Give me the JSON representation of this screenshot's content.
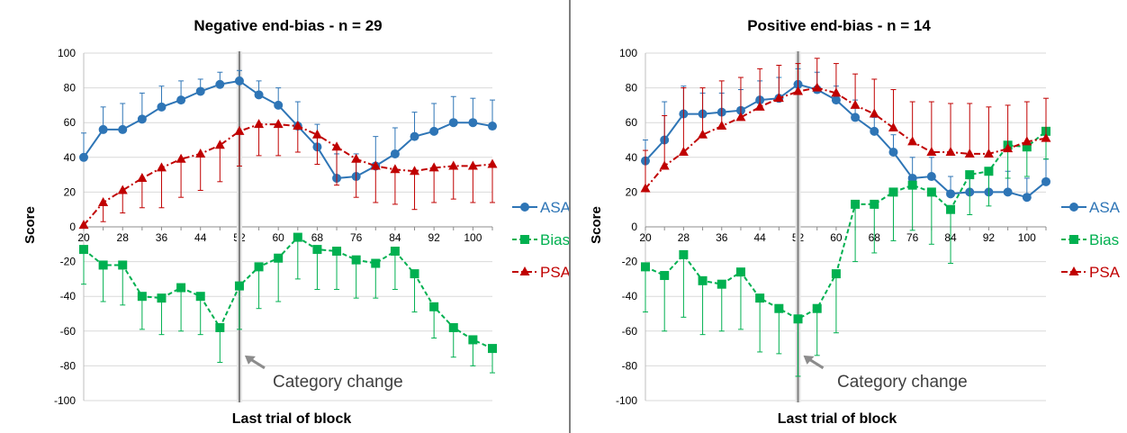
{
  "figure": {
    "charts": [
      {
        "title": "Negative end-bias - n = 29",
        "xlabel": "Last trial of block",
        "ylabel": "Score",
        "annotation": "Category change"
      },
      {
        "title": "Positive end-bias - n = 14",
        "xlabel": "Last trial of block",
        "ylabel": "Score",
        "annotation": "Category change"
      }
    ]
  },
  "chart_data": [
    {
      "type": "line",
      "title": "Negative end-bias - n = 29",
      "xlabel": "Last trial of block",
      "ylabel": "Score",
      "ylim": [
        -100,
        100
      ],
      "yticks": [
        100,
        80,
        60,
        40,
        20,
        0,
        -20,
        -40,
        -60,
        -80,
        -100
      ],
      "xlim": [
        20,
        104
      ],
      "xticks": [
        20,
        28,
        36,
        44,
        52,
        60,
        68,
        76,
        84,
        92,
        100
      ],
      "x": [
        20,
        24,
        28,
        32,
        36,
        40,
        44,
        48,
        52,
        56,
        60,
        64,
        68,
        72,
        76,
        80,
        84,
        88,
        92,
        96,
        100,
        104
      ],
      "category_change_x": 52,
      "annotation": "Category change",
      "legend_position": "right",
      "grid": true,
      "series": [
        {
          "name": "ASA",
          "color": "#2e75b6",
          "marker": "circle",
          "line": "solid",
          "values": [
            40,
            56,
            56,
            62,
            69,
            73,
            78,
            82,
            84,
            76,
            70,
            58,
            46,
            28,
            29,
            35,
            42,
            52,
            55,
            60,
            60,
            58
          ],
          "error_up": [
            14,
            13,
            15,
            15,
            12,
            11,
            7,
            7,
            6,
            8,
            10,
            14,
            13,
            14,
            13,
            17,
            15,
            14,
            16,
            15,
            14,
            15
          ]
        },
        {
          "name": "Bias",
          "color": "#00b050",
          "marker": "square",
          "line": "dashed",
          "values": [
            -13,
            -22,
            -22,
            -40,
            -41,
            -35,
            -40,
            -58,
            -34,
            -23,
            -18,
            -6,
            -13,
            -14,
            -19,
            -21,
            -14,
            -27,
            -46,
            -58,
            -65,
            -70
          ],
          "error_down": [
            20,
            21,
            23,
            19,
            21,
            25,
            22,
            20,
            25,
            24,
            25,
            24,
            23,
            22,
            22,
            20,
            22,
            22,
            18,
            17,
            15,
            14
          ]
        },
        {
          "name": "PSA",
          "color": "#c00000",
          "marker": "triangle",
          "line": "dashdot",
          "values": [
            1,
            14,
            21,
            28,
            34,
            39,
            42,
            47,
            55,
            59,
            59,
            58,
            53,
            46,
            39,
            35,
            33,
            32,
            34,
            35,
            35,
            36
          ],
          "error_down": [
            0,
            11,
            13,
            17,
            23,
            22,
            21,
            21,
            20,
            18,
            18,
            15,
            17,
            22,
            22,
            21,
            20,
            22,
            20,
            19,
            21,
            22
          ]
        }
      ]
    },
    {
      "type": "line",
      "title": "Positive end-bias - n = 14",
      "xlabel": "Last trial of block",
      "ylabel": "Score",
      "ylim": [
        -100,
        100
      ],
      "yticks": [
        100,
        80,
        60,
        40,
        20,
        0,
        -20,
        -40,
        -60,
        -80,
        -100
      ],
      "xlim": [
        20,
        104
      ],
      "xticks": [
        20,
        28,
        36,
        44,
        52,
        60,
        68,
        76,
        84,
        92,
        100
      ],
      "x": [
        20,
        24,
        28,
        32,
        36,
        40,
        44,
        48,
        52,
        56,
        60,
        64,
        68,
        72,
        76,
        80,
        84,
        88,
        92,
        96,
        100,
        104
      ],
      "category_change_x": 52,
      "annotation": "Category change",
      "legend_position": "right",
      "grid": true,
      "series": [
        {
          "name": "ASA",
          "color": "#2e75b6",
          "marker": "circle",
          "line": "solid",
          "values": [
            38,
            50,
            65,
            65,
            66,
            67,
            73,
            74,
            82,
            79,
            73,
            63,
            55,
            43,
            28,
            29,
            19,
            20,
            20,
            20,
            17,
            26
          ],
          "error_up": [
            12,
            22,
            16,
            12,
            11,
            12,
            11,
            12,
            9,
            10,
            8,
            10,
            8,
            10,
            12,
            11,
            10,
            11,
            11,
            12,
            11,
            13
          ]
        },
        {
          "name": "Bias",
          "color": "#00b050",
          "marker": "square",
          "line": "dashed",
          "values": [
            -23,
            -28,
            -16,
            -31,
            -33,
            -26,
            -41,
            -47,
            -53,
            -47,
            -27,
            13,
            13,
            20,
            24,
            20,
            10,
            30,
            32,
            47,
            46,
            55
          ],
          "error_down": [
            26,
            32,
            36,
            31,
            27,
            33,
            31,
            26,
            33,
            27,
            34,
            33,
            28,
            28,
            26,
            30,
            31,
            23,
            20,
            19,
            17,
            16
          ]
        },
        {
          "name": "PSA",
          "color": "#c00000",
          "marker": "triangle",
          "line": "dashdot",
          "values": [
            22,
            35,
            43,
            53,
            58,
            63,
            69,
            74,
            78,
            80,
            77,
            70,
            65,
            57,
            49,
            43,
            43,
            42,
            42,
            45,
            49,
            51
          ],
          "error_up": [
            22,
            29,
            37,
            27,
            26,
            23,
            22,
            19,
            16,
            17,
            17,
            18,
            20,
            22,
            23,
            29,
            28,
            29,
            27,
            25,
            23,
            23
          ]
        }
      ]
    }
  ]
}
